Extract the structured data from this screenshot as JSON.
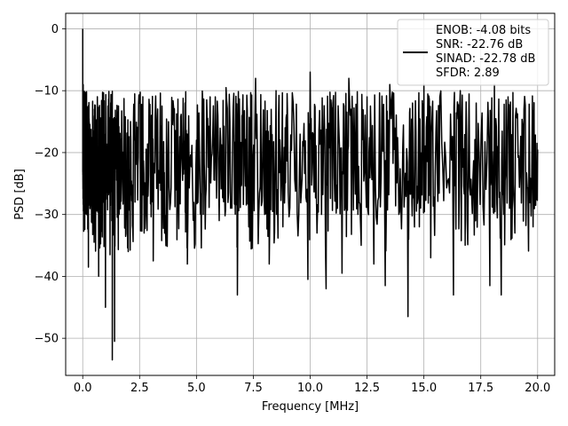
{
  "chart_data": {
    "type": "line",
    "title": "",
    "xlabel": "Frequency [MHz]",
    "ylabel": "PSD [dB]",
    "xlim": [
      -0.75,
      20.75
    ],
    "ylim": [
      -56,
      2.5
    ],
    "xticks": [
      0.0,
      2.5,
      5.0,
      7.5,
      10.0,
      12.5,
      15.0,
      17.5,
      20.0
    ],
    "yticks": [
      0,
      -10,
      -20,
      -30,
      -40,
      -50
    ],
    "xtick_labels": [
      "0.0",
      "2.5",
      "5.0",
      "7.5",
      "10.0",
      "12.5",
      "15.0",
      "17.5",
      "20.0"
    ],
    "ytick_labels": [
      "0",
      "−10",
      "−20",
      "−30",
      "−40",
      "−50"
    ],
    "grid": true,
    "legend_position": "top-right",
    "legend_lines": [
      "ENOB: -4.08 bits",
      "SNR: -22.76 dB",
      "SINAD: -22.78 dB",
      "SFDR: 2.89"
    ],
    "series": [
      {
        "color": "#000000",
        "description": "noisy spectrum, values oscillate roughly between -30 and -8 dB",
        "points": [
          [
            0.0,
            0.0
          ],
          [
            0.02,
            -9.0
          ],
          [
            0.05,
            -17.0
          ],
          [
            0.1,
            -12.0
          ],
          [
            0.15,
            -24.0
          ],
          [
            0.2,
            -16.0
          ],
          [
            0.25,
            -38.5
          ],
          [
            0.3,
            -20.0
          ],
          [
            0.4,
            -30.0
          ],
          [
            0.45,
            -13.0
          ],
          [
            0.5,
            -34.5
          ],
          [
            0.6,
            -22.0
          ],
          [
            0.7,
            -40.0
          ],
          [
            0.8,
            -18.0
          ],
          [
            0.9,
            -28.0
          ],
          [
            1.0,
            -45.0
          ],
          [
            1.1,
            -17.0
          ],
          [
            1.2,
            -36.5
          ],
          [
            1.3,
            -22.0
          ],
          [
            1.3,
            -53.5
          ],
          [
            1.4,
            -50.5
          ],
          [
            1.5,
            -16.0
          ],
          [
            1.6,
            -30.0
          ],
          [
            1.8,
            -20.0
          ],
          [
            2.0,
            -36.0
          ],
          [
            2.1,
            -15.0
          ],
          [
            2.3,
            -28.0
          ],
          [
            2.5,
            -12.0
          ],
          [
            2.7,
            -33.0
          ],
          [
            3.0,
            -20.0
          ],
          [
            3.1,
            -37.5
          ],
          [
            3.4,
            -15.0
          ],
          [
            3.6,
            -33.0
          ],
          [
            4.0,
            -13.0
          ],
          [
            4.2,
            -28.0
          ],
          [
            4.5,
            -12.0
          ],
          [
            4.6,
            -38.0
          ],
          [
            5.0,
            -18.0
          ],
          [
            5.3,
            -30.0
          ],
          [
            5.6,
            -11.0
          ],
          [
            6.0,
            -31.0
          ],
          [
            6.3,
            -9.5
          ],
          [
            6.7,
            -28.0
          ],
          [
            6.8,
            -43.0
          ],
          [
            7.0,
            -14.0
          ],
          [
            7.3,
            -32.0
          ],
          [
            7.6,
            -8.0
          ],
          [
            8.0,
            -30.0
          ],
          [
            8.2,
            -38.0
          ],
          [
            8.5,
            -10.0
          ],
          [
            8.8,
            -32.0
          ],
          [
            9.0,
            -13.0
          ],
          [
            9.5,
            -30.0
          ],
          [
            9.9,
            -40.5
          ],
          [
            10.0,
            -7.0
          ],
          [
            10.3,
            -33.0
          ],
          [
            10.7,
            -42.0
          ],
          [
            11.0,
            -12.0
          ],
          [
            11.4,
            -39.5
          ],
          [
            11.7,
            -8.0
          ],
          [
            12.1,
            -30.0
          ],
          [
            12.5,
            -11.0
          ],
          [
            12.8,
            -38.0
          ],
          [
            13.3,
            -41.5
          ],
          [
            13.5,
            -9.0
          ],
          [
            13.9,
            -30.0
          ],
          [
            14.3,
            -46.5
          ],
          [
            14.5,
            -12.0
          ],
          [
            14.8,
            -32.0
          ],
          [
            15.0,
            -9.0
          ],
          [
            15.3,
            -37.0
          ],
          [
            15.7,
            -11.0
          ],
          [
            16.3,
            -43.0
          ],
          [
            16.6,
            -10.0
          ],
          [
            16.9,
            -31.0
          ],
          [
            17.3,
            -12.0
          ],
          [
            17.9,
            -41.5
          ],
          [
            18.1,
            -9.0
          ],
          [
            18.4,
            -43.0
          ],
          [
            18.7,
            -11.0
          ],
          [
            19.0,
            -33.0
          ],
          [
            19.4,
            -13.0
          ],
          [
            19.8,
            -32.0
          ],
          [
            20.0,
            -19.5
          ]
        ]
      }
    ]
  }
}
